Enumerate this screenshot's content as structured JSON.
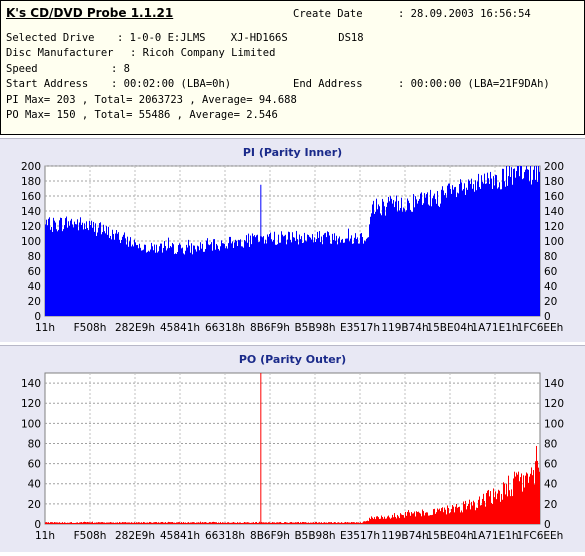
{
  "app": {
    "title": "K's CD/DVD Probe 1.1.21"
  },
  "info": {
    "create_date_label": "Create Date",
    "create_date_value": ": 28.09.2003 16:56:54",
    "selected_drive_label": "Selected Drive",
    "selected_drive_value": ": 1-0-0 E:JLMS    XJ-HD166S        DS18",
    "disc_manufacturer_label": "Disc Manufacturer",
    "disc_manufacturer_value": ": Ricoh Company Limited",
    "speed_label": "Speed",
    "speed_value": ": 8",
    "start_address_label": "Start Address",
    "start_address_value": ": 00:02:00 (LBA=0h)",
    "end_address_label": "End Address",
    "end_address_value": ": 00:00:00 (LBA=21F9DAh)",
    "pi_line": "PI Max= 203 , Total= 2063723 , Average= 94.688",
    "po_line": "PO Max= 150 , Total= 55486 , Average= 2.546"
  },
  "chart_data": [
    {
      "type": "bar",
      "title": "PI (Parity Inner)",
      "color": "#0000ff",
      "ylim": [
        0,
        200
      ],
      "yticks": [
        0,
        20,
        40,
        60,
        80,
        100,
        120,
        140,
        160,
        180,
        200
      ],
      "xtick_labels": [
        "11h",
        "F508h",
        "282E9h",
        "45841h",
        "66318h",
        "8B6F9h",
        "B5B98h",
        "E3517h",
        "119B74h",
        "15BE04h",
        "1A71E1h",
        "1FC6EEh"
      ],
      "grid": true,
      "profile_x": [
        0,
        0.05,
        0.1,
        0.15,
        0.2,
        0.25,
        0.3,
        0.35,
        0.4,
        0.45,
        0.5,
        0.55,
        0.6,
        0.65,
        0.66,
        0.7,
        0.75,
        0.8,
        0.85,
        0.9,
        0.95,
        1.0
      ],
      "profile_y": [
        120,
        125,
        118,
        105,
        92,
        90,
        90,
        95,
        100,
        104,
        104,
        105,
        105,
        105,
        145,
        148,
        152,
        160,
        170,
        180,
        188,
        192
      ],
      "spikes": [
        {
          "x": 0.435,
          "value": 175
        }
      ]
    },
    {
      "type": "bar",
      "title": "PO (Parity Outer)",
      "color": "#ff0000",
      "ylim": [
        0,
        150
      ],
      "yticks": [
        0,
        20,
        40,
        60,
        80,
        100,
        120,
        140
      ],
      "xtick_labels": [
        "11h",
        "F508h",
        "282E9h",
        "45841h",
        "66318h",
        "8B6F9h",
        "B5B98h",
        "E3517h",
        "119B74h",
        "15BE04h",
        "1A71E1h",
        "1FC6EEh"
      ],
      "grid": true,
      "profile_x": [
        0,
        0.1,
        0.2,
        0.3,
        0.4,
        0.5,
        0.6,
        0.64,
        0.66,
        0.7,
        0.75,
        0.8,
        0.85,
        0.9,
        0.95,
        1.0
      ],
      "profile_y": [
        1.5,
        1.5,
        1.5,
        1.5,
        1.5,
        1.5,
        1.5,
        1.5,
        6,
        8,
        10,
        13,
        18,
        26,
        40,
        52
      ],
      "spikes": [
        {
          "x": 0.435,
          "value": 150
        }
      ]
    }
  ]
}
